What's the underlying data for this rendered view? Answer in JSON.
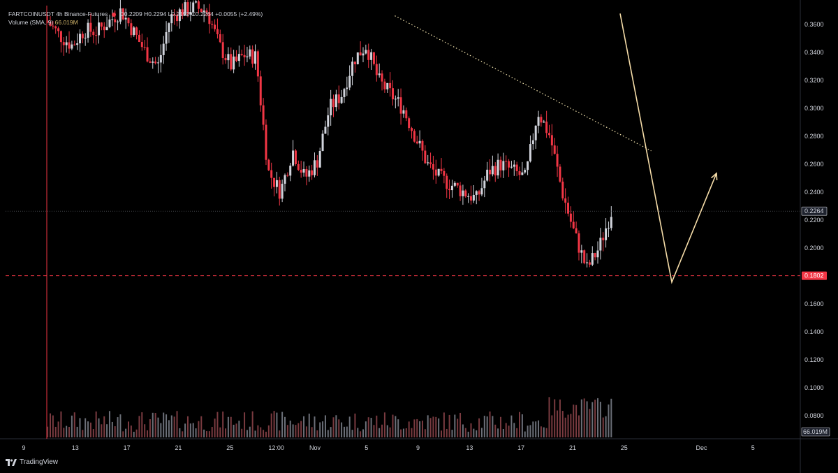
{
  "header": {
    "symbol": "FARTCOINUSDT",
    "interval": "4h",
    "exchange": "Binance-Futures",
    "ohlc": "O0.2209 H0.2294 L0.2192 C0.2264 +0.0055 (+2.49%)",
    "volume_label": "Volume (SMA, 9)",
    "volume_value": "66.019M"
  },
  "footer": {
    "brand": "TradingView"
  },
  "colors": {
    "background": "#000000",
    "up": "#d1d4dc",
    "down": "#f23645",
    "projection": "#f5dca8",
    "trendline": "#f5e6b0",
    "support": "#f23645"
  },
  "chart_data": {
    "type": "candlestick",
    "y_axis_ticks": [
      "0.3600",
      "0.3400",
      "0.3200",
      "0.3000",
      "0.2800",
      "0.2600",
      "0.2400",
      "0.2200",
      "0.2000",
      "0.1800",
      "0.1600",
      "0.1400",
      "0.1200",
      "0.1000",
      "0.0800"
    ],
    "ylim": [
      0.063,
      0.3678
    ],
    "x_axis_ticks": [
      "9",
      "13",
      "17",
      "21",
      "25",
      "12:00",
      "Nov",
      "5",
      "9",
      "13",
      "17",
      "21",
      "25",
      "Dec",
      "5"
    ],
    "current_price_label": "0.2264",
    "support_label": "0.1802",
    "volume_label": "66.019M",
    "series": [
      {
        "name": "price",
        "approx_closes": [
          0.362,
          0.352,
          0.345,
          0.356,
          0.355,
          0.362,
          0.37,
          0.355,
          0.34,
          0.33,
          0.365,
          0.37,
          0.372,
          0.37,
          0.345,
          0.33,
          0.338,
          0.337,
          0.255,
          0.24,
          0.27,
          0.25,
          0.262,
          0.3,
          0.31,
          0.335,
          0.345,
          0.32,
          0.31,
          0.3,
          0.28,
          0.26,
          0.25,
          0.245,
          0.24,
          0.235,
          0.255,
          0.26,
          0.255,
          0.25,
          0.298,
          0.28,
          0.24,
          0.21,
          0.185,
          0.2,
          0.226
        ]
      }
    ],
    "annotations": {
      "support_level": 0.1802,
      "trendline": [
        {
          "t": 40,
          "p": 0.3662
        },
        {
          "t": 66,
          "p": 0.2696
        }
      ],
      "projection_path": [
        {
          "t": 66,
          "p": 0.3678
        },
        {
          "t": 71,
          "p": 0.1756
        },
        {
          "t": 76,
          "p": 0.2535
        }
      ]
    }
  }
}
